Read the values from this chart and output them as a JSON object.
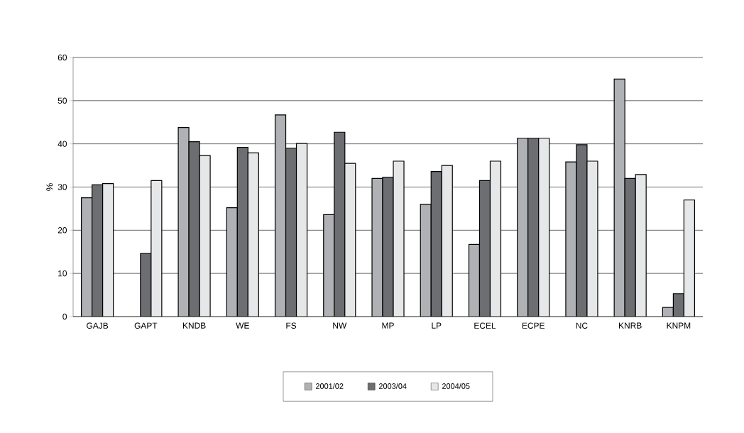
{
  "chart_data": {
    "type": "bar",
    "ylabel": "%",
    "categories": [
      "GAJB",
      "GAPT",
      "KNDB",
      "WE",
      "FS",
      "NW",
      "MP",
      "LP",
      "ECEL",
      "ECPE",
      "NC",
      "KNRB",
      "KNPM"
    ],
    "series": [
      {
        "name": "2001/02",
        "color": "#b0b1b5",
        "values": [
          27.5,
          null,
          43.8,
          25.2,
          46.7,
          23.6,
          32.0,
          26.0,
          16.7,
          41.3,
          35.8,
          55.0,
          2.1
        ]
      },
      {
        "name": "2003/04",
        "color": "#6d6e71",
        "values": [
          30.5,
          14.6,
          40.5,
          39.2,
          39.0,
          42.7,
          32.3,
          33.6,
          31.5,
          41.3,
          39.8,
          32.0,
          5.3
        ]
      },
      {
        "name": "2004/05",
        "color": "#e6e7e8",
        "values": [
          30.8,
          31.5,
          37.3,
          37.9,
          40.1,
          35.5,
          36.0,
          35.0,
          36.0,
          41.3,
          36.0,
          32.9,
          27.0
        ]
      }
    ],
    "ylim": [
      0,
      60
    ],
    "yticks": [
      0,
      10,
      20,
      30,
      40,
      50,
      60
    ],
    "grid": "y",
    "legend": "bottom"
  }
}
